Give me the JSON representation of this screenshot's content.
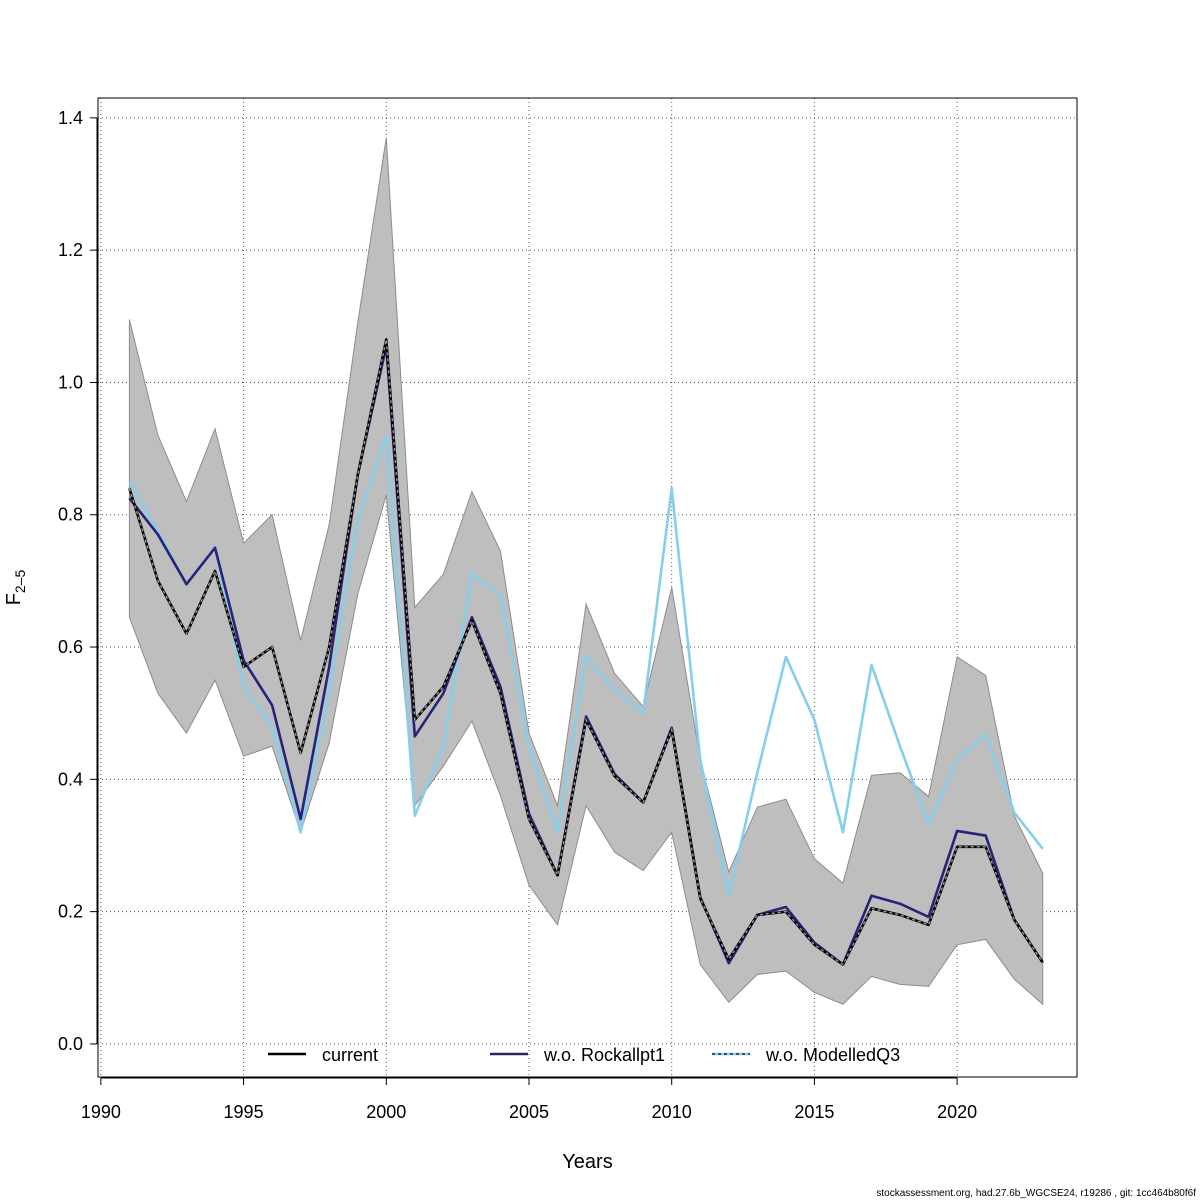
{
  "chart_data": {
    "type": "line",
    "title": "",
    "xlabel": "Years",
    "ylabel": "F",
    "ylabel_subscript": "2–5",
    "xlim": [
      1989.9,
      2024.2
    ],
    "ylim": [
      -0.05,
      1.43
    ],
    "x_ticks": [
      1990,
      1995,
      2000,
      2005,
      2010,
      2015,
      2020
    ],
    "x_tick_labels": [
      "1990",
      "1995",
      "2000",
      "2005",
      "2010",
      "2015",
      "2020"
    ],
    "y_ticks": [
      0.0,
      0.2,
      0.4,
      0.6,
      0.8,
      1.0,
      1.2,
      1.4
    ],
    "y_tick_labels": [
      "0.0",
      "0.2",
      "0.4",
      "0.6",
      "0.8",
      "1.0",
      "1.2",
      "1.4"
    ],
    "grid": true,
    "legend_position": "bottom",
    "x": [
      1991,
      1992,
      1993,
      1994,
      1995,
      1996,
      1997,
      1998,
      1999,
      2000,
      2001,
      2002,
      2003,
      2004,
      2005,
      2006,
      2007,
      2008,
      2009,
      2010,
      2011,
      2012,
      2013,
      2014,
      2015,
      2016,
      2017,
      2018,
      2019,
      2020,
      2021,
      2022,
      2023
    ],
    "confidence_band": {
      "color": "#bebebe",
      "edge_color": "#8c8c8c",
      "lower": [
        0.645,
        0.53,
        0.47,
        0.55,
        0.435,
        0.45,
        0.32,
        0.455,
        0.68,
        0.83,
        0.36,
        0.42,
        0.488,
        0.375,
        0.24,
        0.18,
        0.36,
        0.29,
        0.262,
        0.32,
        0.12,
        0.063,
        0.105,
        0.11,
        0.078,
        0.06,
        0.102,
        0.09,
        0.087,
        0.15,
        0.158,
        0.098,
        0.06
      ],
      "upper": [
        1.095,
        0.92,
        0.82,
        0.93,
        0.757,
        0.8,
        0.61,
        0.785,
        1.09,
        1.37,
        0.66,
        0.71,
        0.835,
        0.745,
        0.47,
        0.36,
        0.665,
        0.56,
        0.51,
        0.69,
        0.43,
        0.26,
        0.358,
        0.37,
        0.28,
        0.243,
        0.406,
        0.41,
        0.374,
        0.585,
        0.557,
        0.345,
        0.258
      ]
    },
    "series": [
      {
        "name": "current",
        "color": "#000000",
        "dash": "solid",
        "values": [
          0.84,
          0.7,
          0.62,
          0.715,
          0.57,
          0.6,
          0.44,
          0.6,
          0.86,
          1.065,
          0.49,
          0.54,
          0.64,
          0.53,
          0.34,
          0.255,
          0.49,
          0.405,
          0.365,
          0.475,
          0.22,
          0.128,
          0.195,
          0.2,
          0.15,
          0.12,
          0.205,
          0.195,
          0.18,
          0.298,
          0.298,
          0.188,
          0.123
        ]
      },
      {
        "name": "w.o. Rockallpt1",
        "color": "#27237a",
        "dash": "solid",
        "values": [
          0.825,
          0.77,
          0.695,
          0.75,
          0.58,
          0.512,
          0.34,
          0.57,
          0.86,
          1.055,
          0.465,
          0.53,
          0.645,
          0.54,
          0.348,
          0.255,
          0.495,
          0.408,
          0.365,
          0.478,
          0.222,
          0.122,
          0.195,
          0.207,
          0.153,
          0.12,
          0.224,
          0.212,
          0.192,
          0.322,
          0.315,
          0.188,
          0.123
        ]
      },
      {
        "name": "w.o. ModelledQ3",
        "color": "#87ceeb",
        "dash": "solid",
        "values": [
          0.85,
          0.775,
          0.695,
          0.75,
          0.54,
          0.48,
          0.32,
          0.53,
          0.79,
          0.92,
          0.345,
          0.45,
          0.71,
          0.68,
          0.45,
          0.32,
          0.585,
          0.535,
          0.5,
          0.84,
          0.43,
          0.225,
          0.41,
          0.585,
          0.49,
          0.32,
          0.573,
          0.45,
          0.333,
          0.43,
          0.468,
          0.35,
          0.295
        ]
      }
    ],
    "legend": [
      {
        "label": "current",
        "line_color": "#000000",
        "overlay": false
      },
      {
        "label": "w.o. Rockallpt1",
        "line_color": "#27237a",
        "overlay": true
      },
      {
        "label": "w.o. ModelledQ3",
        "line_color": "#87ceeb",
        "overlay": true
      }
    ],
    "overlay_style": {
      "color": "#2a2a2a",
      "dash": "3,3"
    }
  },
  "footer": {
    "text": "stockassessment.org, had.27.6b_WGCSE24, r19286 , git: 1cc464b80f6f"
  }
}
